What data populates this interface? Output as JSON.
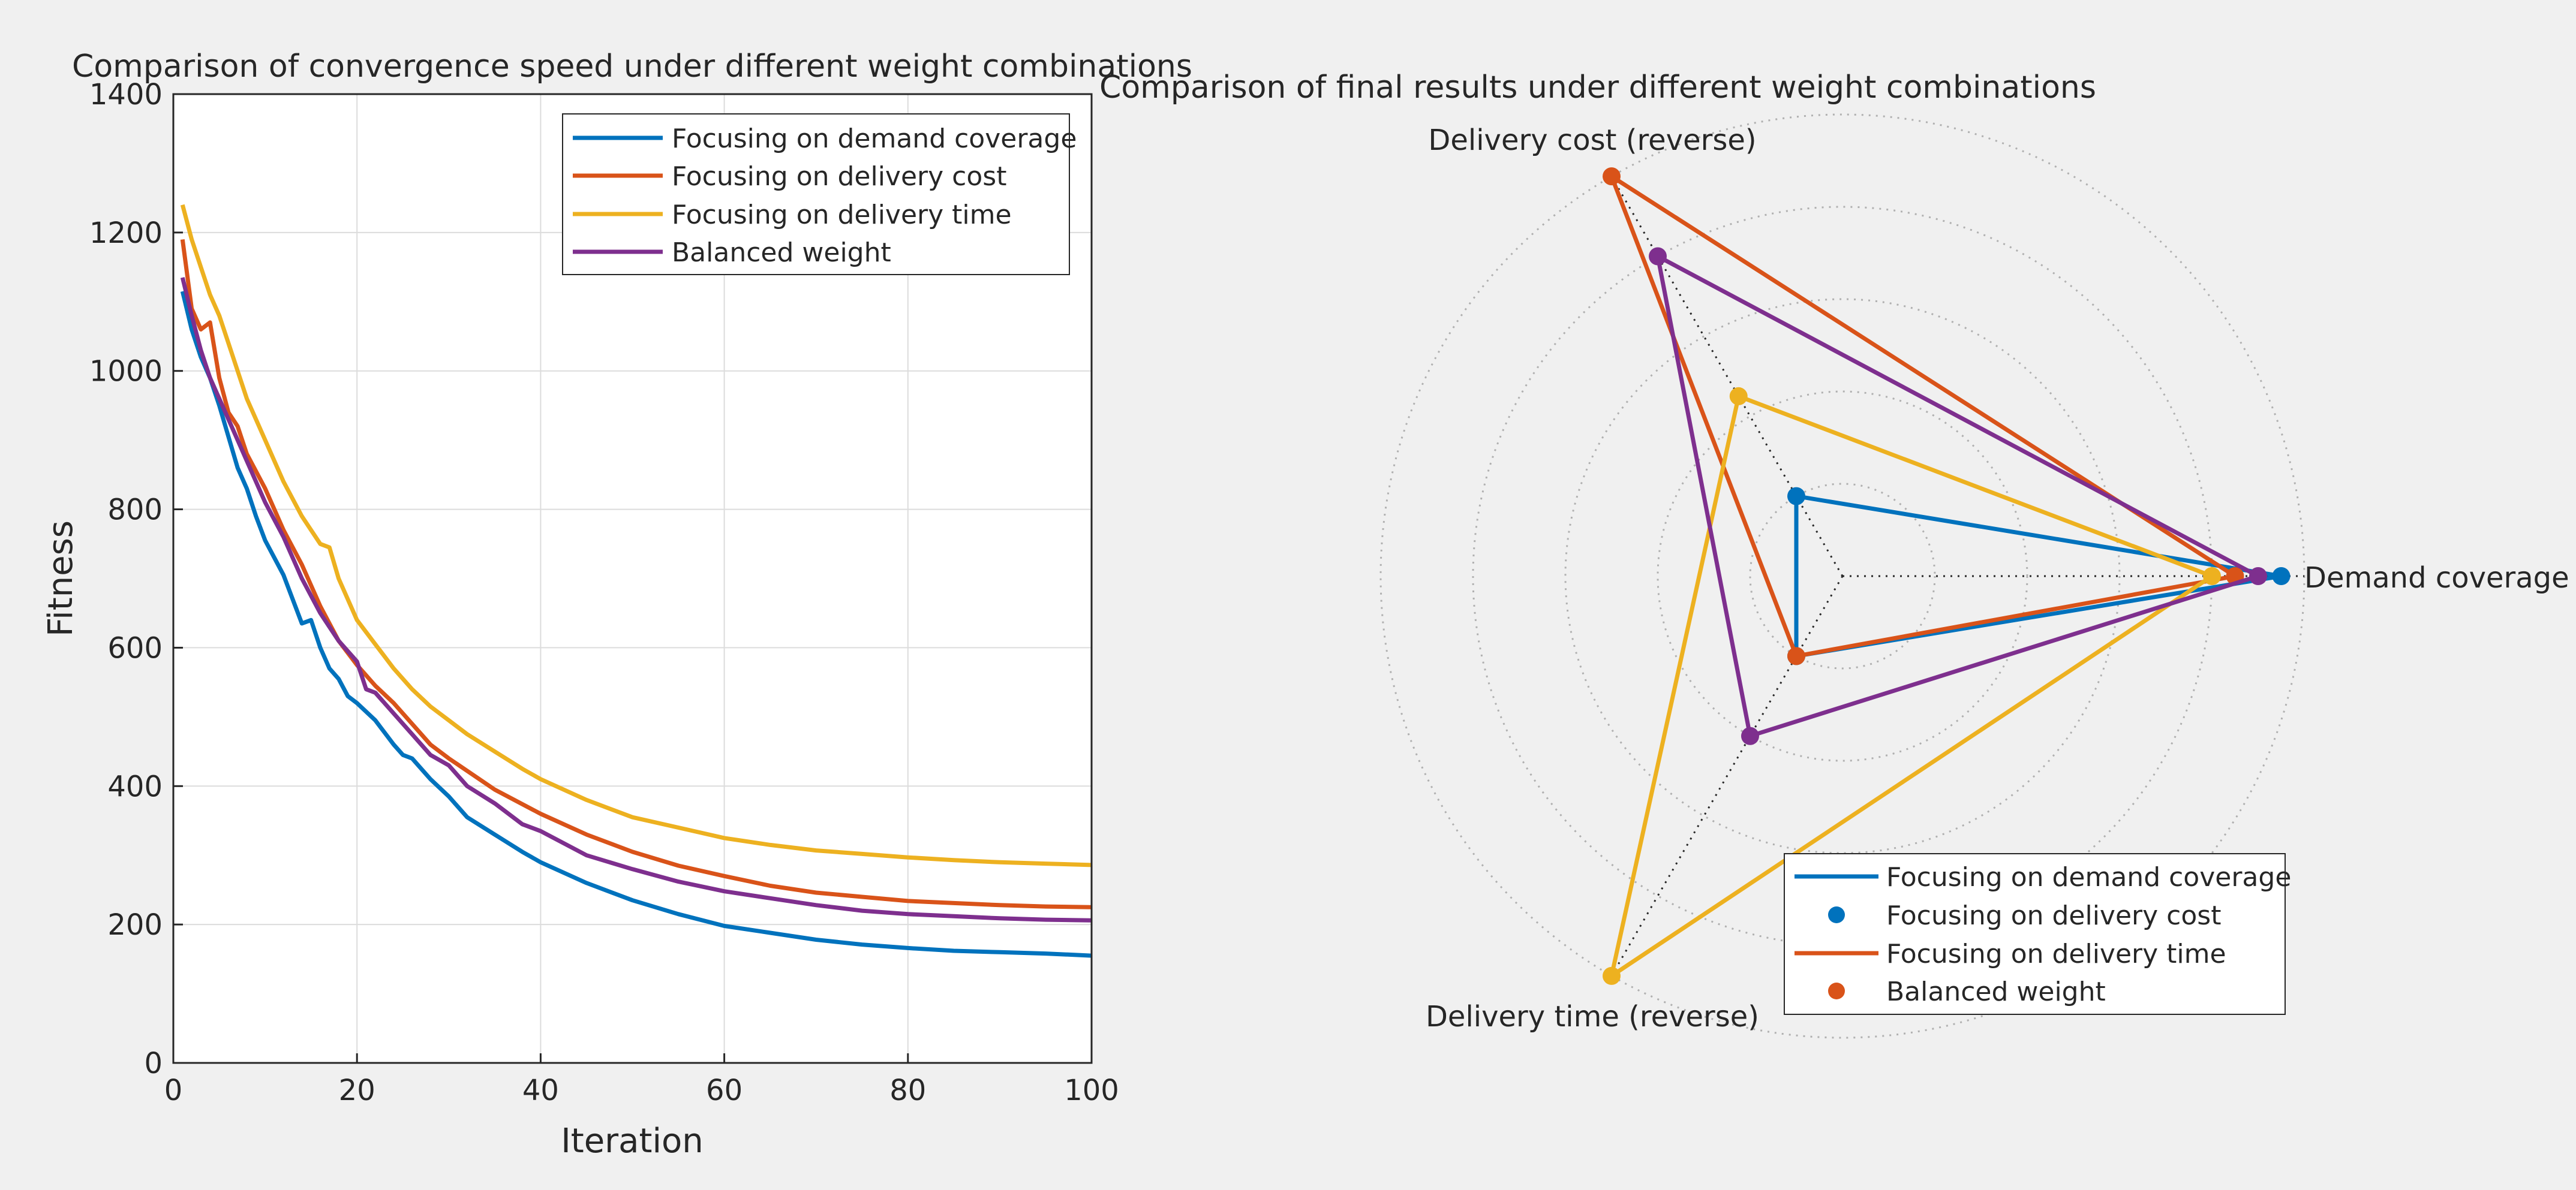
{
  "colors": {
    "demand": "#0072BD",
    "cost": "#D95319",
    "time": "#EDB120",
    "balanced": "#7E2F8E",
    "grid": "#dcdcdc",
    "background": "#f0f0f0"
  },
  "left": {
    "title": "Comparison of convergence speed under different weight combinations",
    "xlabel": "Iteration",
    "ylabel": "Fitness",
    "xticks": [
      "0",
      "20",
      "40",
      "60",
      "80",
      "100"
    ],
    "yticks": [
      "0",
      "200",
      "400",
      "600",
      "800",
      "1000",
      "1200",
      "1400"
    ],
    "legend": [
      "Focusing on demand coverage",
      "Focusing on delivery cost",
      "Focusing on delivery time",
      "Balanced weight"
    ]
  },
  "right": {
    "title": "Comparison of final results under different weight combinations",
    "spoke_labels": {
      "demand": "Demand coverage",
      "cost": "Delivery cost (reverse)",
      "time": "Delivery time (reverse)"
    },
    "legend": [
      "Focusing on demand coverage",
      "Focusing on delivery cost",
      "Focusing on delivery time",
      "Balanced weight"
    ]
  },
  "chart_data": [
    {
      "type": "line",
      "title": "Comparison of convergence speed under different weight combinations",
      "xlabel": "Iteration",
      "ylabel": "Fitness",
      "xlim": [
        0,
        100
      ],
      "ylim": [
        0,
        1400
      ],
      "grid": true,
      "legend_position": "top-right",
      "series": [
        {
          "name": "Focusing on demand coverage",
          "color": "#0072BD",
          "x": [
            1,
            2,
            3,
            4,
            5,
            6,
            7,
            8,
            9,
            10,
            12,
            14,
            15,
            16,
            17,
            18,
            19,
            20,
            22,
            24,
            25,
            26,
            28,
            30,
            32,
            35,
            38,
            40,
            45,
            50,
            55,
            60,
            65,
            70,
            75,
            80,
            85,
            90,
            95,
            100
          ],
          "values": [
            1115,
            1060,
            1020,
            990,
            950,
            905,
            860,
            830,
            790,
            755,
            705,
            635,
            640,
            600,
            570,
            555,
            530,
            520,
            495,
            460,
            445,
            440,
            410,
            385,
            355,
            330,
            305,
            290,
            260,
            235,
            215,
            198,
            188,
            178,
            171,
            166,
            162,
            160,
            158,
            155
          ]
        },
        {
          "name": "Focusing on delivery cost",
          "color": "#D95319",
          "x": [
            1,
            2,
            3,
            4,
            5,
            6,
            7,
            8,
            10,
            12,
            14,
            16,
            18,
            20,
            22,
            24,
            26,
            28,
            30,
            35,
            40,
            45,
            50,
            55,
            60,
            65,
            70,
            75,
            80,
            85,
            90,
            95,
            100
          ],
          "values": [
            1190,
            1090,
            1060,
            1070,
            990,
            940,
            920,
            880,
            830,
            770,
            720,
            660,
            610,
            575,
            545,
            520,
            490,
            460,
            440,
            395,
            360,
            330,
            305,
            285,
            270,
            256,
            246,
            240,
            234,
            231,
            228,
            226,
            225
          ]
        },
        {
          "name": "Focusing on delivery time",
          "color": "#EDB120",
          "x": [
            1,
            2,
            3,
            4,
            5,
            6,
            7,
            8,
            10,
            12,
            14,
            16,
            17,
            18,
            20,
            22,
            24,
            26,
            28,
            30,
            32,
            35,
            38,
            40,
            45,
            50,
            55,
            60,
            65,
            70,
            75,
            80,
            85,
            90,
            95,
            100
          ],
          "values": [
            1240,
            1190,
            1150,
            1110,
            1080,
            1040,
            1000,
            960,
            900,
            840,
            790,
            750,
            745,
            700,
            640,
            605,
            570,
            540,
            515,
            495,
            475,
            450,
            425,
            410,
            380,
            355,
            340,
            325,
            315,
            307,
            302,
            297,
            293,
            290,
            288,
            286
          ]
        },
        {
          "name": "Balanced weight",
          "color": "#7E2F8E",
          "x": [
            1,
            2,
            3,
            4,
            5,
            6,
            7,
            8,
            10,
            12,
            14,
            16,
            18,
            20,
            21,
            22,
            24,
            26,
            28,
            30,
            32,
            35,
            38,
            40,
            45,
            50,
            55,
            60,
            65,
            70,
            75,
            80,
            85,
            90,
            95,
            100
          ],
          "values": [
            1135,
            1080,
            1030,
            990,
            960,
            930,
            900,
            870,
            810,
            760,
            700,
            650,
            610,
            580,
            540,
            535,
            505,
            475,
            445,
            430,
            400,
            375,
            345,
            335,
            300,
            280,
            262,
            248,
            238,
            228,
            220,
            215,
            212,
            209,
            207,
            206
          ]
        }
      ]
    },
    {
      "type": "radar",
      "title": "Comparison of final results under different weight combinations",
      "axes": [
        "Demand coverage",
        "Delivery cost (reverse)",
        "Delivery time (reverse)"
      ],
      "rlim": [
        0,
        1
      ],
      "rings": 5,
      "legend_position": "bottom-right",
      "series": [
        {
          "name": "Focusing on demand coverage",
          "color": "#0072BD",
          "values": [
            0.95,
            0.2,
            0.2
          ]
        },
        {
          "name": "Focusing on delivery cost",
          "color": "#D95319",
          "values": [
            0.85,
            1.0,
            0.2
          ]
        },
        {
          "name": "Focusing on delivery time",
          "color": "#EDB120",
          "values": [
            0.8,
            0.45,
            1.0
          ]
        },
        {
          "name": "Balanced weight",
          "color": "#7E2F8E",
          "values": [
            0.9,
            0.8,
            0.4
          ]
        }
      ]
    }
  ]
}
